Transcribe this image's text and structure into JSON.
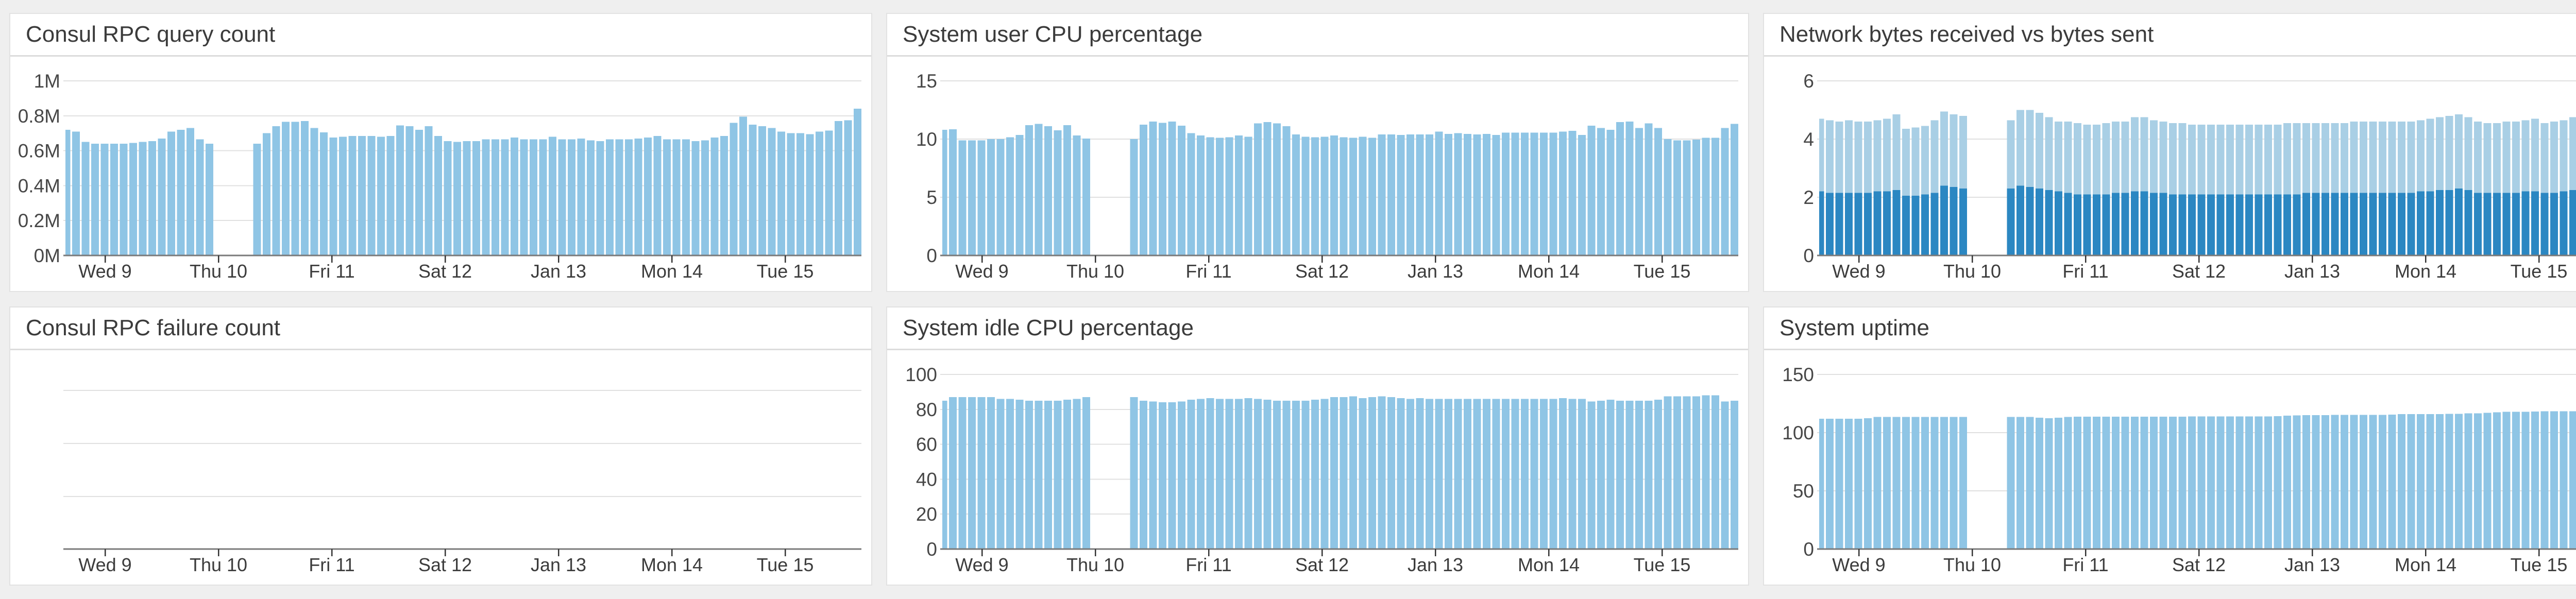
{
  "page": {
    "background_color": "#efefef",
    "panel_background": "#ffffff",
    "accent_bar_color": "#8fc5e5",
    "accent_bar_dark_color": "#2b87c2"
  },
  "panels": [
    {
      "title": "Consul RPC query count",
      "chart_index": 0
    },
    {
      "title": "System user CPU percentage",
      "chart_index": 1
    },
    {
      "title": "Network bytes received vs bytes sent",
      "chart_index": 2
    },
    {
      "title": "Consul RPC failure count",
      "chart_index": 3
    },
    {
      "title": "System idle CPU percentage",
      "chart_index": 4
    },
    {
      "title": "System uptime",
      "chart_index": 5
    }
  ],
  "x_axis": {
    "tick_labels": [
      "Wed 9",
      "Thu 10",
      "Fri 11",
      "Sat 12",
      "Jan 13",
      "Mon 14",
      "Tue 15"
    ]
  },
  "chart_data": [
    {
      "type": "bar",
      "title": "Consul RPC query count",
      "xlabel": "",
      "ylabel": "",
      "ylim": [
        0,
        1000000
      ],
      "grid": true,
      "legend_position": "none",
      "x_tick_labels": [
        "Wed 9",
        "Thu 10",
        "Fri 11",
        "Sat 12",
        "Jan 13",
        "Mon 14",
        "Tue 15"
      ],
      "y_ticks": [
        {
          "label": "1M",
          "value": 1.0
        },
        {
          "label": "0.8M",
          "value": 0.8
        },
        {
          "label": "0.6M",
          "value": 0.6
        },
        {
          "label": "0.4M",
          "value": 0.4
        },
        {
          "label": "0.2M",
          "value": 0.2
        },
        {
          "label": "0M",
          "value": 0
        }
      ],
      "series": [
        {
          "name": "consul rpc queries",
          "color": "#8fc5e5",
          "unit": "M",
          "values": [
            0.72,
            0.71,
            0.65,
            0.64,
            0.64,
            0.64,
            0.64,
            0.645,
            0.65,
            0.655,
            0.67,
            0.71,
            0.72,
            0.73,
            0.665,
            0.64,
            null,
            null,
            null,
            null,
            0.64,
            0.7,
            0.74,
            0.765,
            0.765,
            0.77,
            0.73,
            0.705,
            0.675,
            0.68,
            0.685,
            0.685,
            0.685,
            0.68,
            0.685,
            0.745,
            0.74,
            0.72,
            0.74,
            0.685,
            0.655,
            0.65,
            0.655,
            0.655,
            0.665,
            0.665,
            0.665,
            0.675,
            0.665,
            0.665,
            0.665,
            0.68,
            0.665,
            0.665,
            0.67,
            0.66,
            0.655,
            0.665,
            0.665,
            0.665,
            0.67,
            0.675,
            0.685,
            0.665,
            0.665,
            0.665,
            0.655,
            0.66,
            0.675,
            0.685,
            0.76,
            0.795,
            0.75,
            0.74,
            0.73,
            0.71,
            0.7,
            0.7,
            0.695,
            0.71,
            0.715,
            0.77,
            0.775,
            0.84
          ]
        }
      ]
    },
    {
      "type": "bar",
      "title": "System user CPU percentage",
      "xlabel": "",
      "ylabel": "",
      "ylim": [
        0,
        15
      ],
      "grid": true,
      "legend_position": "none",
      "x_tick_labels": [
        "Wed 9",
        "Thu 10",
        "Fri 11",
        "Sat 12",
        "Jan 13",
        "Mon 14",
        "Tue 15"
      ],
      "y_ticks": [
        {
          "label": "15",
          "value": 15
        },
        {
          "label": "10",
          "value": 10
        },
        {
          "label": "5",
          "value": 5
        },
        {
          "label": "0",
          "value": 0
        }
      ],
      "series": [
        {
          "name": "user cpu %",
          "color": "#8fc5e5",
          "unit": "%",
          "values": [
            10.8,
            10.85,
            9.9,
            9.9,
            9.9,
            10.0,
            10.0,
            10.15,
            10.35,
            11.2,
            11.3,
            11.1,
            10.75,
            11.2,
            10.3,
            10.05,
            null,
            null,
            null,
            null,
            10.0,
            11.25,
            11.5,
            11.4,
            11.5,
            11.15,
            10.5,
            10.3,
            10.15,
            10.1,
            10.15,
            10.3,
            10.2,
            11.35,
            11.45,
            11.35,
            11.1,
            10.4,
            10.2,
            10.15,
            10.2,
            10.3,
            10.15,
            10.1,
            10.2,
            10.1,
            10.4,
            10.4,
            10.35,
            10.4,
            10.4,
            10.4,
            10.65,
            10.45,
            10.5,
            10.45,
            10.4,
            10.45,
            10.35,
            10.55,
            10.55,
            10.55,
            10.55,
            10.55,
            10.55,
            10.65,
            10.7,
            10.35,
            11.15,
            10.95,
            10.8,
            11.45,
            11.5,
            10.95,
            11.35,
            10.95,
            10.0,
            9.9,
            9.9,
            9.95,
            10.1,
            10.1,
            10.95,
            11.3
          ]
        }
      ]
    },
    {
      "type": "bar",
      "title": "Network bytes received vs bytes sent",
      "xlabel": "",
      "ylabel": "",
      "ylim": [
        0,
        6
      ],
      "grid": true,
      "legend_position": "none",
      "x_tick_labels": [
        "Wed 9",
        "Thu 10",
        "Fri 11",
        "Sat 12",
        "Jan 13",
        "Mon 14",
        "Tue 15"
      ],
      "y_ticks": [
        {
          "label": "6",
          "value": 6
        },
        {
          "label": "4",
          "value": 4
        },
        {
          "label": "2",
          "value": 2
        },
        {
          "label": "0",
          "value": 0
        }
      ],
      "series": [
        {
          "name": "bytes received",
          "color": "#a9cfe5",
          "unit": "",
          "values": [
            4.7,
            4.65,
            4.6,
            4.65,
            4.6,
            4.6,
            4.65,
            4.7,
            4.85,
            4.35,
            4.4,
            4.45,
            4.65,
            4.95,
            4.85,
            4.8,
            null,
            null,
            null,
            null,
            4.65,
            5.0,
            5.0,
            4.9,
            4.75,
            4.6,
            4.6,
            4.55,
            4.5,
            4.5,
            4.55,
            4.6,
            4.6,
            4.75,
            4.75,
            4.65,
            4.6,
            4.55,
            4.55,
            4.5,
            4.5,
            4.5,
            4.5,
            4.5,
            4.5,
            4.5,
            4.5,
            4.5,
            4.5,
            4.55,
            4.55,
            4.55,
            4.55,
            4.55,
            4.55,
            4.55,
            4.6,
            4.6,
            4.6,
            4.6,
            4.6,
            4.6,
            4.6,
            4.65,
            4.7,
            4.75,
            4.8,
            4.85,
            4.75,
            4.6,
            4.55,
            4.55,
            4.6,
            4.6,
            4.65,
            4.7,
            4.55,
            4.6,
            4.65,
            4.75,
            4.85,
            4.8,
            4.75,
            4.8
          ]
        },
        {
          "name": "bytes sent",
          "color": "#2b87c2",
          "unit": "",
          "values": [
            2.2,
            2.15,
            2.15,
            2.15,
            2.15,
            2.15,
            2.2,
            2.2,
            2.25,
            2.05,
            2.05,
            2.1,
            2.15,
            2.4,
            2.35,
            2.3,
            null,
            null,
            null,
            null,
            2.3,
            2.4,
            2.35,
            2.3,
            2.25,
            2.2,
            2.15,
            2.1,
            2.1,
            2.1,
            2.1,
            2.15,
            2.15,
            2.2,
            2.2,
            2.15,
            2.15,
            2.1,
            2.1,
            2.1,
            2.1,
            2.1,
            2.1,
            2.1,
            2.1,
            2.1,
            2.1,
            2.1,
            2.1,
            2.1,
            2.1,
            2.15,
            2.15,
            2.15,
            2.15,
            2.15,
            2.15,
            2.15,
            2.15,
            2.15,
            2.15,
            2.15,
            2.15,
            2.2,
            2.2,
            2.25,
            2.25,
            2.3,
            2.25,
            2.15,
            2.15,
            2.15,
            2.15,
            2.15,
            2.2,
            2.2,
            2.15,
            2.15,
            2.2,
            2.25,
            2.3,
            2.25,
            2.25,
            2.3
          ]
        }
      ]
    },
    {
      "type": "bar",
      "title": "Consul RPC failure count",
      "xlabel": "",
      "ylabel": "",
      "grid": true,
      "legend_position": "none",
      "x_tick_labels": [
        "Wed 9",
        "Thu 10",
        "Fri 11",
        "Sat 12",
        "Jan 13",
        "Mon 14",
        "Tue 15"
      ],
      "y_ticks": [],
      "unlabeled_gridlines": 3,
      "series": []
    },
    {
      "type": "bar",
      "title": "System idle CPU percentage",
      "xlabel": "",
      "ylabel": "",
      "ylim": [
        0,
        100
      ],
      "grid": true,
      "legend_position": "none",
      "x_tick_labels": [
        "Wed 9",
        "Thu 10",
        "Fri 11",
        "Sat 12",
        "Jan 13",
        "Mon 14",
        "Tue 15"
      ],
      "y_ticks": [
        {
          "label": "100",
          "value": 100
        },
        {
          "label": "80",
          "value": 80
        },
        {
          "label": "60",
          "value": 60
        },
        {
          "label": "40",
          "value": 40
        },
        {
          "label": "20",
          "value": 20
        },
        {
          "label": "0",
          "value": 0
        }
      ],
      "series": [
        {
          "name": "idle cpu %",
          "color": "#8fc5e5",
          "unit": "%",
          "values": [
            85,
            87,
            87,
            87,
            87,
            87,
            86,
            86,
            85.5,
            85,
            85,
            85,
            85,
            85.5,
            86,
            87,
            null,
            null,
            null,
            null,
            87,
            85,
            84.5,
            84,
            84,
            84.5,
            85.5,
            86,
            86.5,
            86,
            86,
            86,
            86.5,
            86,
            85.5,
            85,
            85,
            85,
            85,
            85.5,
            86,
            87,
            87,
            87.5,
            86.5,
            87,
            87.5,
            87,
            86.5,
            86,
            86.5,
            86,
            86,
            86,
            86,
            86,
            86,
            86,
            86,
            86,
            86,
            86,
            86,
            86,
            86,
            86.5,
            86,
            86,
            84.5,
            85,
            85.5,
            85,
            85,
            85,
            85,
            85.5,
            87.5,
            87.5,
            87.5,
            87.5,
            88,
            88,
            84.5,
            85
          ]
        }
      ]
    },
    {
      "type": "bar",
      "title": "System uptime",
      "xlabel": "",
      "ylabel": "",
      "ylim": [
        0,
        150
      ],
      "grid": true,
      "legend_position": "none",
      "x_tick_labels": [
        "Wed 9",
        "Thu 10",
        "Fri 11",
        "Sat 12",
        "Jan 13",
        "Mon 14",
        "Tue 15"
      ],
      "y_ticks": [
        {
          "label": "150",
          "value": 150
        },
        {
          "label": "100",
          "value": 100
        },
        {
          "label": "50",
          "value": 50
        },
        {
          "label": "0",
          "value": 0
        }
      ],
      "series": [
        {
          "name": "uptime",
          "color": "#8fc5e5",
          "unit": "",
          "values": [
            112,
            112,
            112,
            112,
            112,
            112.5,
            113.5,
            113.5,
            113.5,
            113.5,
            113.5,
            113.5,
            113.5,
            113.5,
            113.5,
            113.5,
            null,
            null,
            null,
            null,
            113.5,
            113.5,
            113.5,
            112.8,
            112.5,
            112.8,
            113.5,
            113.7,
            113.7,
            113.7,
            113.7,
            113.7,
            113.7,
            113.8,
            113.8,
            113.8,
            113.8,
            113.8,
            113.8,
            113.9,
            113.9,
            113.9,
            113.9,
            114.0,
            114.0,
            114.0,
            114.0,
            114.0,
            114.2,
            114.5,
            114.8,
            115.0,
            115.0,
            115.0,
            115.2,
            115.2,
            115.2,
            115.3,
            115.3,
            115.2,
            115.5,
            116.0,
            116.0,
            116.0,
            116.0,
            116.0,
            116.2,
            116.2,
            116.5,
            116.5,
            117.0,
            117.5,
            118.0,
            118.0,
            118.0,
            118.2,
            118.3,
            118.3,
            118.3,
            118.3,
            118.5,
            118.5,
            119.5,
            120.0
          ]
        }
      ]
    }
  ]
}
